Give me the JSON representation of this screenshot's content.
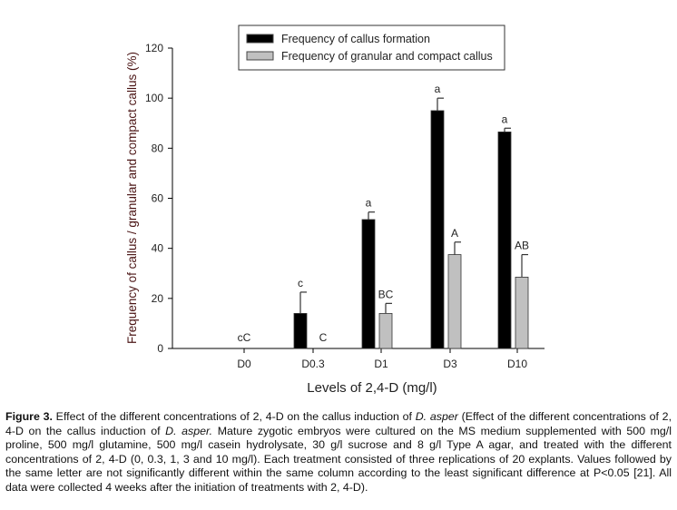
{
  "chart_data": {
    "type": "bar",
    "title": "",
    "xlabel": "Levels of 2,4-D (mg/l)",
    "ylabel": "Frequency of callus / granular and compact callus (%)",
    "ylim": [
      0,
      120
    ],
    "yticks": [
      0,
      20,
      40,
      60,
      80,
      100,
      120
    ],
    "categories": [
      "D0",
      "D0.3",
      "D1",
      "D3",
      "D10"
    ],
    "legend_position": "top-center",
    "series": [
      {
        "name": "Frequency of callus formation",
        "color": "#000000",
        "values": [
          0,
          14,
          51.5,
          95,
          86.5
        ],
        "error_upper": [
          0,
          22.5,
          54.5,
          100,
          88
        ],
        "letters": [
          "",
          "c",
          "a",
          "a",
          "a"
        ]
      },
      {
        "name": "Frequency of granular and compact callus",
        "color": "#c0c0c0",
        "values": [
          0,
          0,
          14,
          37.5,
          28.5
        ],
        "error_upper": [
          0,
          0,
          18,
          42.5,
          37.5
        ],
        "letters": [
          "",
          "C",
          "BC",
          "A",
          "AB"
        ]
      }
    ],
    "group_letters": [
      "cC",
      "",
      "",
      "",
      ""
    ]
  },
  "caption": {
    "label": "Figure 3.",
    "part1": " Effect of the different concentrations of 2, 4-D on the callus induction of ",
    "species1": "D. asper",
    "part2": " (Effect of the different concentrations of 2, 4-D on the callus induction of ",
    "species2": "D. asper.",
    "part3": " Mature zygotic embryos were cultured on the MS medium supplemented with 500 mg/l proline, 500 mg/l glutamine, 500 mg/l casein hydrolysate, 30 g/l sucrose and 8 g/l Type A agar, and treated with the different concentrations of 2, 4-D (0, 0.3, 1, 3 and 10 mg/l). Each treatment consisted of three replications of 20 explants. Values followed by the same letter are not significantly different within the same column according to the least significant difference at P<0.05 [21]. All data were collected 4 weeks after the initiation of treatments with 2, 4-D)."
  }
}
